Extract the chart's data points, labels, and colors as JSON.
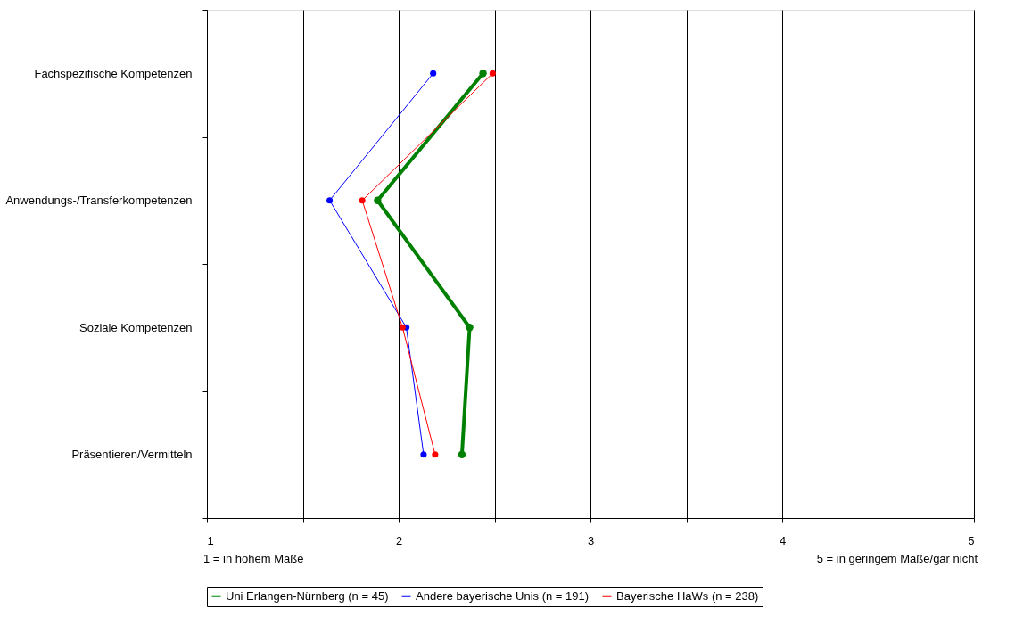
{
  "chart_data": {
    "type": "line",
    "categories": [
      "Fachspezifische Kompetenzen",
      "Anwendungs-/Transferkompetenzen",
      "Soziale Kompetenzen",
      "Präsentieren/Vermitteln"
    ],
    "orientation": "horizontal",
    "series": [
      {
        "name": "Uni Erlangen-Nürnberg (n = 45)",
        "color": "#008000",
        "values": [
          2.44,
          1.89,
          2.37,
          2.33
        ]
      },
      {
        "name": "Andere bayerische Unis (n = 191)",
        "color": "#0000ff",
        "values": [
          2.18,
          1.64,
          2.04,
          2.13
        ]
      },
      {
        "name": "Bayerische HaWs (n = 238)",
        "color": "#ff0000",
        "values": [
          2.49,
          1.81,
          2.02,
          2.19
        ]
      }
    ],
    "xlim": [
      1,
      5
    ],
    "xticks": [
      1,
      {
        "value": 1.5,
        "label": null
      },
      2,
      {
        "value": 2.5,
        "label": null
      },
      3,
      {
        "value": 3.5,
        "label": null
      },
      4,
      {
        "value": 4.5,
        "label": null
      },
      5
    ],
    "grid": "x",
    "marker": "circle",
    "line_style": "solid",
    "legend": "bottom",
    "annotations": [
      "1 = in hohem Maße",
      "5 = in geringem Maße/gar nicht"
    ]
  }
}
